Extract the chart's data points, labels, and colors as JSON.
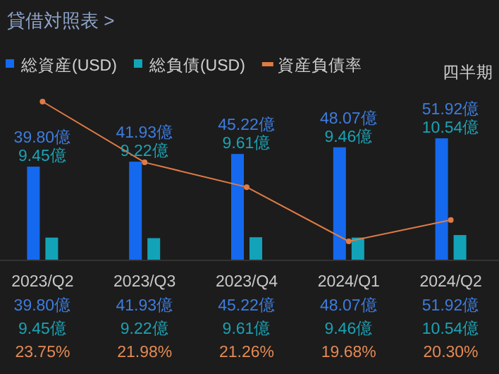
{
  "chart_data": {
    "type": "bar",
    "title": "貸借対照表 >",
    "categories": [
      "2023/Q2",
      "2023/Q3",
      "2023/Q4",
      "2024/Q1",
      "2024/Q2"
    ],
    "series": [
      {
        "name": "総資産(USD)",
        "color": "#1469ee",
        "values": [
          39.8,
          41.93,
          45.22,
          48.07,
          51.92
        ],
        "value_labels": [
          "39.80億",
          "41.93億",
          "45.22億",
          "48.07億",
          "51.92億"
        ]
      },
      {
        "name": "総負債(USD)",
        "color": "#12a3b8",
        "values": [
          9.45,
          9.22,
          9.61,
          9.46,
          10.54
        ],
        "value_labels": [
          "9.45億",
          "9.22億",
          "9.61億",
          "9.46億",
          "10.54億"
        ]
      },
      {
        "name": "資産負債率",
        "type": "line",
        "axis": "y2",
        "marker": "circle",
        "color": "#e07b45",
        "values": [
          23.75,
          21.98,
          21.26,
          19.68,
          20.3
        ],
        "value_labels": [
          "23.75%",
          "21.98%",
          "21.26%",
          "19.68%",
          "20.30%"
        ]
      }
    ],
    "legend": "top left",
    "annotations": [
      "四半期"
    ]
  }
}
